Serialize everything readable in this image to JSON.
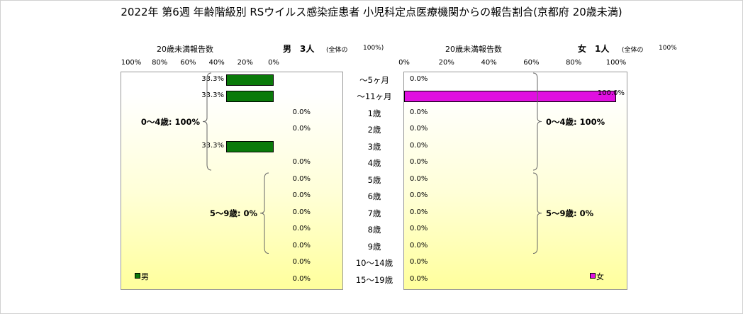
{
  "chart_data": {
    "type": "bar",
    "title": "2022年 第6週 年齢階級別 RSウイルス感染症患者 小児科定点医療機関からの報告割合(京都府 20歳未満)",
    "categories": [
      "～5ヶ月",
      "～11ヶ月",
      "1歳",
      "2歳",
      "3歳",
      "4歳",
      "5歳",
      "6歳",
      "7歳",
      "8歳",
      "9歳",
      "10～14歳",
      "15～19歳"
    ],
    "series": [
      {
        "name": "男",
        "color": "#0a7a0a",
        "values": [
          33.3,
          33.3,
          0.0,
          0.0,
          33.3,
          0.0,
          0.0,
          0.0,
          0.0,
          0.0,
          0.0,
          0.0,
          0.0
        ],
        "labels": [
          "33.3%",
          "33.3%",
          "0.0%",
          "0.0%",
          "33.3%",
          "0.0%",
          "0.0%",
          "0.0%",
          "0.0%",
          "0.0%",
          "0.0%",
          "0.0%",
          "0.0%"
        ]
      },
      {
        "name": "女",
        "color": "#e010e0",
        "values": [
          0.0,
          100.0,
          0.0,
          0.0,
          0.0,
          0.0,
          0.0,
          0.0,
          0.0,
          0.0,
          0.0,
          0.0,
          0.0
        ],
        "labels": [
          "0.0%",
          "100.0%",
          "0.0%",
          "0.0%",
          "0.0%",
          "0.0%",
          "0.0%",
          "0.0%",
          "0.0%",
          "0.0%",
          "0.0%",
          "0.0%",
          "0.0%"
        ]
      }
    ],
    "xlim": [
      0,
      100
    ],
    "left_ticks": [
      "100%",
      "80%",
      "60%",
      "40%",
      "20%",
      "0%"
    ],
    "right_ticks": [
      "0%",
      "20%",
      "40%",
      "60%",
      "80%",
      "100%"
    ],
    "male_panel": {
      "axis_label": "20歳未満報告数",
      "sex": "男",
      "count": "3人",
      "total_label": "(全体の",
      "total_pct": "100%)",
      "groups": [
        {
          "label": "0～4歳: 100%",
          "from": 0,
          "to": 5
        },
        {
          "label": "5～9歳: 0%",
          "from": 6,
          "to": 10
        }
      ]
    },
    "female_panel": {
      "axis_label": "20歳未満報告数",
      "sex": "女",
      "count": "1人",
      "total_label": "(全体の",
      "total_pct": "100%",
      "groups": [
        {
          "label": "0～4歳: 100%",
          "from": 0,
          "to": 5
        },
        {
          "label": "5～9歳: 0%",
          "from": 6,
          "to": 10
        }
      ]
    },
    "grid": false,
    "legend_position": "bottom-corners"
  }
}
